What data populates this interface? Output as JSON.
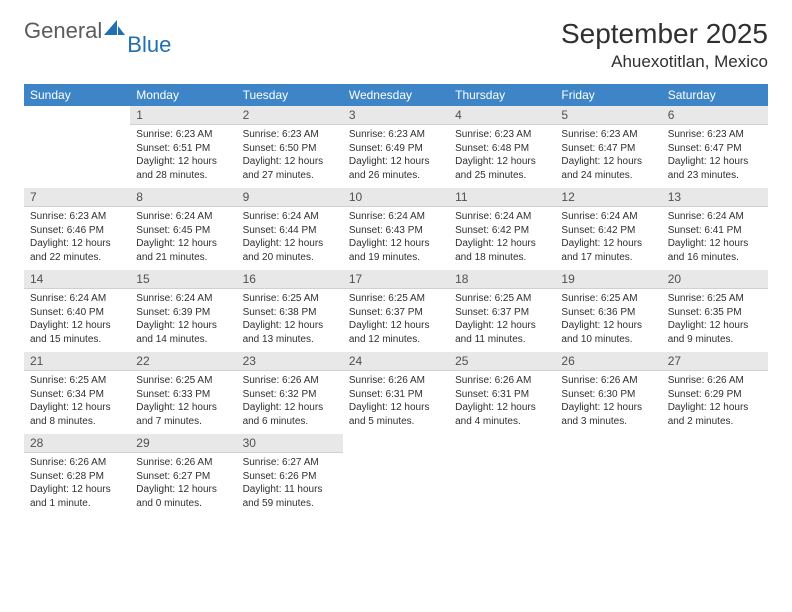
{
  "logo": {
    "word1": "General",
    "word2": "Blue"
  },
  "title": "September 2025",
  "location": "Ahuexotitlan, Mexico",
  "day_headers": [
    "Sunday",
    "Monday",
    "Tuesday",
    "Wednesday",
    "Thursday",
    "Friday",
    "Saturday"
  ],
  "colors": {
    "header_bg": "#3d85c6",
    "header_fg": "#ffffff",
    "daynum_bg": "#e8e8e8",
    "text": "#303030",
    "logo_gray": "#5b5b5b",
    "logo_blue": "#1f6fb2"
  },
  "weeks": [
    [
      {
        "n": "",
        "sunrise": "",
        "sunset": "",
        "daylight": ""
      },
      {
        "n": "1",
        "sunrise": "Sunrise: 6:23 AM",
        "sunset": "Sunset: 6:51 PM",
        "daylight": "Daylight: 12 hours and 28 minutes."
      },
      {
        "n": "2",
        "sunrise": "Sunrise: 6:23 AM",
        "sunset": "Sunset: 6:50 PM",
        "daylight": "Daylight: 12 hours and 27 minutes."
      },
      {
        "n": "3",
        "sunrise": "Sunrise: 6:23 AM",
        "sunset": "Sunset: 6:49 PM",
        "daylight": "Daylight: 12 hours and 26 minutes."
      },
      {
        "n": "4",
        "sunrise": "Sunrise: 6:23 AM",
        "sunset": "Sunset: 6:48 PM",
        "daylight": "Daylight: 12 hours and 25 minutes."
      },
      {
        "n": "5",
        "sunrise": "Sunrise: 6:23 AM",
        "sunset": "Sunset: 6:47 PM",
        "daylight": "Daylight: 12 hours and 24 minutes."
      },
      {
        "n": "6",
        "sunrise": "Sunrise: 6:23 AM",
        "sunset": "Sunset: 6:47 PM",
        "daylight": "Daylight: 12 hours and 23 minutes."
      }
    ],
    [
      {
        "n": "7",
        "sunrise": "Sunrise: 6:23 AM",
        "sunset": "Sunset: 6:46 PM",
        "daylight": "Daylight: 12 hours and 22 minutes."
      },
      {
        "n": "8",
        "sunrise": "Sunrise: 6:24 AM",
        "sunset": "Sunset: 6:45 PM",
        "daylight": "Daylight: 12 hours and 21 minutes."
      },
      {
        "n": "9",
        "sunrise": "Sunrise: 6:24 AM",
        "sunset": "Sunset: 6:44 PM",
        "daylight": "Daylight: 12 hours and 20 minutes."
      },
      {
        "n": "10",
        "sunrise": "Sunrise: 6:24 AM",
        "sunset": "Sunset: 6:43 PM",
        "daylight": "Daylight: 12 hours and 19 minutes."
      },
      {
        "n": "11",
        "sunrise": "Sunrise: 6:24 AM",
        "sunset": "Sunset: 6:42 PM",
        "daylight": "Daylight: 12 hours and 18 minutes."
      },
      {
        "n": "12",
        "sunrise": "Sunrise: 6:24 AM",
        "sunset": "Sunset: 6:42 PM",
        "daylight": "Daylight: 12 hours and 17 minutes."
      },
      {
        "n": "13",
        "sunrise": "Sunrise: 6:24 AM",
        "sunset": "Sunset: 6:41 PM",
        "daylight": "Daylight: 12 hours and 16 minutes."
      }
    ],
    [
      {
        "n": "14",
        "sunrise": "Sunrise: 6:24 AM",
        "sunset": "Sunset: 6:40 PM",
        "daylight": "Daylight: 12 hours and 15 minutes."
      },
      {
        "n": "15",
        "sunrise": "Sunrise: 6:24 AM",
        "sunset": "Sunset: 6:39 PM",
        "daylight": "Daylight: 12 hours and 14 minutes."
      },
      {
        "n": "16",
        "sunrise": "Sunrise: 6:25 AM",
        "sunset": "Sunset: 6:38 PM",
        "daylight": "Daylight: 12 hours and 13 minutes."
      },
      {
        "n": "17",
        "sunrise": "Sunrise: 6:25 AM",
        "sunset": "Sunset: 6:37 PM",
        "daylight": "Daylight: 12 hours and 12 minutes."
      },
      {
        "n": "18",
        "sunrise": "Sunrise: 6:25 AM",
        "sunset": "Sunset: 6:37 PM",
        "daylight": "Daylight: 12 hours and 11 minutes."
      },
      {
        "n": "19",
        "sunrise": "Sunrise: 6:25 AM",
        "sunset": "Sunset: 6:36 PM",
        "daylight": "Daylight: 12 hours and 10 minutes."
      },
      {
        "n": "20",
        "sunrise": "Sunrise: 6:25 AM",
        "sunset": "Sunset: 6:35 PM",
        "daylight": "Daylight: 12 hours and 9 minutes."
      }
    ],
    [
      {
        "n": "21",
        "sunrise": "Sunrise: 6:25 AM",
        "sunset": "Sunset: 6:34 PM",
        "daylight": "Daylight: 12 hours and 8 minutes."
      },
      {
        "n": "22",
        "sunrise": "Sunrise: 6:25 AM",
        "sunset": "Sunset: 6:33 PM",
        "daylight": "Daylight: 12 hours and 7 minutes."
      },
      {
        "n": "23",
        "sunrise": "Sunrise: 6:26 AM",
        "sunset": "Sunset: 6:32 PM",
        "daylight": "Daylight: 12 hours and 6 minutes."
      },
      {
        "n": "24",
        "sunrise": "Sunrise: 6:26 AM",
        "sunset": "Sunset: 6:31 PM",
        "daylight": "Daylight: 12 hours and 5 minutes."
      },
      {
        "n": "25",
        "sunrise": "Sunrise: 6:26 AM",
        "sunset": "Sunset: 6:31 PM",
        "daylight": "Daylight: 12 hours and 4 minutes."
      },
      {
        "n": "26",
        "sunrise": "Sunrise: 6:26 AM",
        "sunset": "Sunset: 6:30 PM",
        "daylight": "Daylight: 12 hours and 3 minutes."
      },
      {
        "n": "27",
        "sunrise": "Sunrise: 6:26 AM",
        "sunset": "Sunset: 6:29 PM",
        "daylight": "Daylight: 12 hours and 2 minutes."
      }
    ],
    [
      {
        "n": "28",
        "sunrise": "Sunrise: 6:26 AM",
        "sunset": "Sunset: 6:28 PM",
        "daylight": "Daylight: 12 hours and 1 minute."
      },
      {
        "n": "29",
        "sunrise": "Sunrise: 6:26 AM",
        "sunset": "Sunset: 6:27 PM",
        "daylight": "Daylight: 12 hours and 0 minutes."
      },
      {
        "n": "30",
        "sunrise": "Sunrise: 6:27 AM",
        "sunset": "Sunset: 6:26 PM",
        "daylight": "Daylight: 11 hours and 59 minutes."
      },
      {
        "n": "",
        "sunrise": "",
        "sunset": "",
        "daylight": ""
      },
      {
        "n": "",
        "sunrise": "",
        "sunset": "",
        "daylight": ""
      },
      {
        "n": "",
        "sunrise": "",
        "sunset": "",
        "daylight": ""
      },
      {
        "n": "",
        "sunrise": "",
        "sunset": "",
        "daylight": ""
      }
    ]
  ]
}
